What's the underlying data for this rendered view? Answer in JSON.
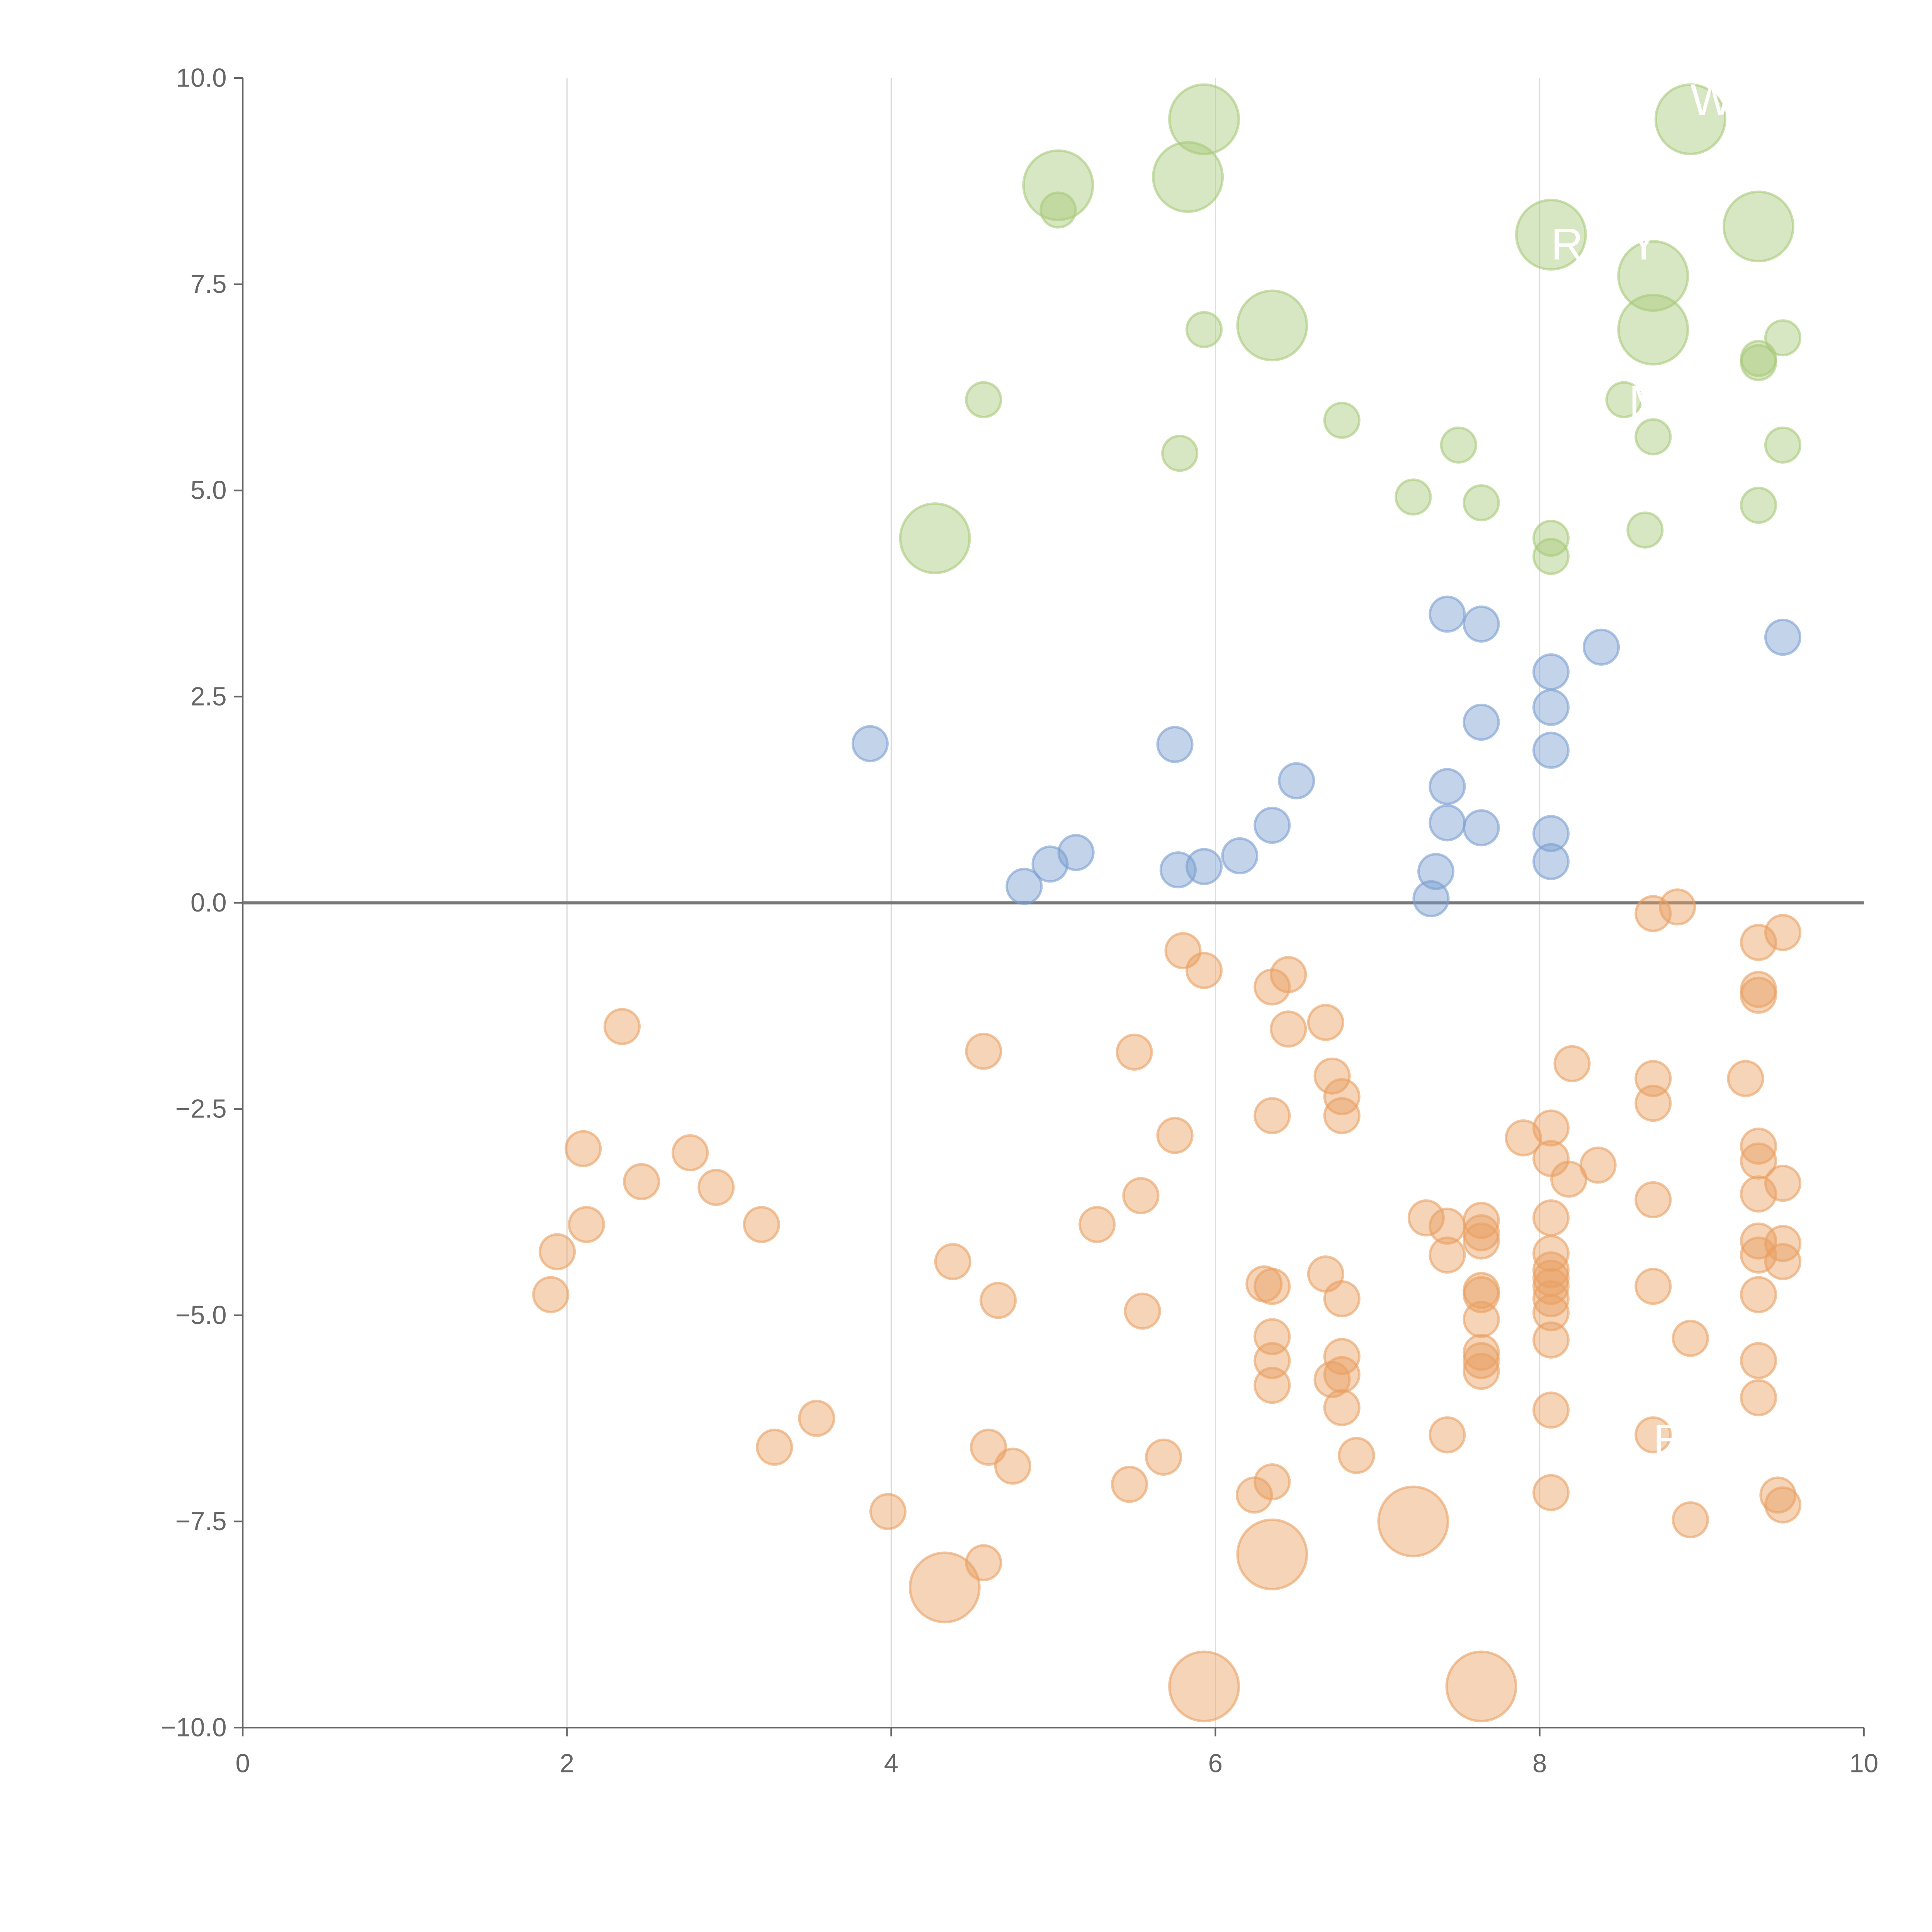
{
  "chart_data": {
    "type": "scatter",
    "title": "",
    "xlabel": "",
    "ylabel": "",
    "xlim": [
      0,
      10
    ],
    "ylim": [
      -10,
      10
    ],
    "x_ticks": [
      "0",
      "2",
      "4",
      "6",
      "8",
      "10"
    ],
    "y_ticks": [
      "10.0",
      "7.5",
      "5.0",
      "2.5",
      "0.0",
      "−2.5",
      "−5.0",
      "−7.5",
      "−10.0"
    ],
    "grid": "vertical",
    "reference_line_y": 0,
    "point_format": "[x, y, relative_size]",
    "series": [
      {
        "name": "green",
        "color": "#a9c97a",
        "points": [
          [
            5.93,
            9.5,
            2
          ],
          [
            5.03,
            8.7,
            2
          ],
          [
            5.03,
            8.4,
            1
          ],
          [
            5.83,
            8.8,
            2
          ],
          [
            8.07,
            8.1,
            2
          ],
          [
            8.93,
            9.5,
            2
          ],
          [
            9.35,
            8.2,
            2
          ],
          [
            8.7,
            7.6,
            2
          ],
          [
            8.7,
            6.95,
            2
          ],
          [
            6.35,
            7.0,
            2
          ],
          [
            5.93,
            6.95,
            1
          ],
          [
            4.57,
            6.1,
            1
          ],
          [
            5.78,
            5.45,
            1
          ],
          [
            6.78,
            5.85,
            1
          ],
          [
            7.5,
            5.55,
            1
          ],
          [
            7.22,
            4.92,
            1
          ],
          [
            7.64,
            4.85,
            1
          ],
          [
            8.07,
            4.42,
            1
          ],
          [
            8.07,
            4.2,
            1
          ],
          [
            8.52,
            6.1,
            1
          ],
          [
            8.7,
            5.65,
            1
          ],
          [
            8.65,
            4.52,
            1
          ],
          [
            9.35,
            6.6,
            1
          ],
          [
            9.35,
            6.55,
            1
          ],
          [
            9.5,
            6.85,
            1
          ],
          [
            9.5,
            5.55,
            1
          ],
          [
            9.35,
            4.82,
            1
          ],
          [
            4.27,
            4.42,
            2
          ]
        ]
      },
      {
        "name": "blue",
        "color": "#7b9fd1",
        "points": [
          [
            3.87,
            1.93,
            1
          ],
          [
            5.75,
            1.92,
            1
          ],
          [
            4.82,
            0.2,
            1
          ],
          [
            4.98,
            0.47,
            1
          ],
          [
            5.14,
            0.61,
            1
          ],
          [
            5.77,
            0.4,
            1
          ],
          [
            5.93,
            0.44,
            1
          ],
          [
            6.15,
            0.57,
            1
          ],
          [
            6.35,
            0.94,
            1
          ],
          [
            6.5,
            1.48,
            1
          ],
          [
            7.43,
            3.5,
            1
          ],
          [
            7.64,
            3.38,
            1
          ],
          [
            7.64,
            2.19,
            1
          ],
          [
            7.43,
            1.41,
            1
          ],
          [
            7.43,
            0.97,
            1
          ],
          [
            7.64,
            0.91,
            1
          ],
          [
            7.36,
            0.38,
            1
          ],
          [
            7.33,
            0.05,
            1
          ],
          [
            8.07,
            2.8,
            1
          ],
          [
            8.07,
            2.37,
            1
          ],
          [
            8.07,
            1.85,
            1
          ],
          [
            8.07,
            0.84,
            1
          ],
          [
            8.07,
            0.5,
            1
          ],
          [
            8.38,
            3.1,
            1
          ],
          [
            9.5,
            3.22,
            1
          ]
        ]
      },
      {
        "name": "orange",
        "color": "#e9a062",
        "points": [
          [
            2.34,
            -1.5,
            1
          ],
          [
            2.1,
            -2.98,
            1
          ],
          [
            2.12,
            -3.9,
            1
          ],
          [
            1.94,
            -4.23,
            1
          ],
          [
            1.9,
            -4.75,
            1
          ],
          [
            2.46,
            -3.38,
            1
          ],
          [
            2.76,
            -3.03,
            1
          ],
          [
            2.92,
            -3.45,
            1
          ],
          [
            3.2,
            -3.9,
            1
          ],
          [
            3.54,
            -6.25,
            1
          ],
          [
            3.28,
            -6.6,
            1
          ],
          [
            3.98,
            -7.38,
            1
          ],
          [
            4.33,
            -8.3,
            2
          ],
          [
            4.38,
            -4.35,
            1
          ],
          [
            4.57,
            -1.8,
            1
          ],
          [
            4.66,
            -4.82,
            1
          ],
          [
            4.6,
            -6.6,
            1
          ],
          [
            4.75,
            -6.83,
            1
          ],
          [
            4.57,
            -8.0,
            1
          ],
          [
            5.27,
            -3.9,
            1
          ],
          [
            5.5,
            -1.81,
            1
          ],
          [
            5.54,
            -3.55,
            1
          ],
          [
            5.55,
            -4.95,
            1
          ],
          [
            5.47,
            -7.05,
            1
          ],
          [
            5.68,
            -6.72,
            1
          ],
          [
            5.75,
            -2.82,
            1
          ],
          [
            5.8,
            -0.58,
            1
          ],
          [
            5.93,
            -0.82,
            1
          ],
          [
            5.93,
            -9.5,
            2
          ],
          [
            6.24,
            -7.18,
            1
          ],
          [
            6.35,
            -7.02,
            1
          ],
          [
            6.35,
            -7.9,
            2
          ],
          [
            6.35,
            -1.02,
            1
          ],
          [
            6.45,
            -0.87,
            1
          ],
          [
            6.45,
            -1.53,
            1
          ],
          [
            6.35,
            -2.58,
            1
          ],
          [
            6.3,
            -4.62,
            1
          ],
          [
            6.35,
            -4.65,
            1
          ],
          [
            6.35,
            -5.26,
            1
          ],
          [
            6.35,
            -5.55,
            1
          ],
          [
            6.35,
            -5.85,
            1
          ],
          [
            6.68,
            -1.45,
            1
          ],
          [
            6.72,
            -2.1,
            1
          ],
          [
            6.78,
            -2.35,
            1
          ],
          [
            6.78,
            -2.58,
            1
          ],
          [
            6.68,
            -4.5,
            1
          ],
          [
            6.78,
            -4.8,
            1
          ],
          [
            6.78,
            -5.5,
            1
          ],
          [
            6.72,
            -5.78,
            1
          ],
          [
            6.78,
            -5.72,
            1
          ],
          [
            6.78,
            -6.12,
            1
          ],
          [
            6.87,
            -6.7,
            1
          ],
          [
            7.22,
            -7.5,
            2
          ],
          [
            7.3,
            -3.82,
            1
          ],
          [
            7.43,
            -3.92,
            1
          ],
          [
            7.43,
            -4.27,
            1
          ],
          [
            7.43,
            -6.45,
            1
          ],
          [
            7.64,
            -3.85,
            1
          ],
          [
            7.64,
            -4.0,
            1
          ],
          [
            7.64,
            -4.1,
            1
          ],
          [
            7.64,
            -4.7,
            1
          ],
          [
            7.64,
            -4.75,
            1
          ],
          [
            7.64,
            -5.05,
            1
          ],
          [
            7.64,
            -5.45,
            1
          ],
          [
            7.64,
            -5.55,
            1
          ],
          [
            7.64,
            -5.68,
            1
          ],
          [
            7.64,
            -9.5,
            2
          ],
          [
            7.9,
            -2.85,
            1
          ],
          [
            8.07,
            -2.73,
            1
          ],
          [
            8.07,
            -3.1,
            1
          ],
          [
            8.18,
            -3.35,
            1
          ],
          [
            8.2,
            -1.95,
            1
          ],
          [
            8.07,
            -3.82,
            1
          ],
          [
            8.07,
            -4.25,
            1
          ],
          [
            8.07,
            -4.45,
            1
          ],
          [
            8.07,
            -4.55,
            1
          ],
          [
            8.07,
            -4.65,
            1
          ],
          [
            8.07,
            -4.8,
            1
          ],
          [
            8.07,
            -4.97,
            1
          ],
          [
            8.07,
            -5.3,
            1
          ],
          [
            8.07,
            -6.15,
            1
          ],
          [
            8.07,
            -7.15,
            1
          ],
          [
            8.36,
            -3.18,
            1
          ],
          [
            8.7,
            -0.13,
            1
          ],
          [
            8.85,
            -0.05,
            1
          ],
          [
            8.7,
            -2.13,
            1
          ],
          [
            8.7,
            -2.43,
            1
          ],
          [
            8.7,
            -3.6,
            1
          ],
          [
            8.7,
            -4.65,
            1
          ],
          [
            8.7,
            -6.45,
            1
          ],
          [
            8.93,
            -5.28,
            1
          ],
          [
            8.93,
            -7.48,
            1
          ],
          [
            9.27,
            -2.13,
            1
          ],
          [
            9.35,
            -0.48,
            1
          ],
          [
            9.35,
            -1.05,
            1
          ],
          [
            9.35,
            -1.12,
            1
          ],
          [
            9.35,
            -2.95,
            1
          ],
          [
            9.35,
            -3.13,
            1
          ],
          [
            9.35,
            -3.53,
            1
          ],
          [
            9.35,
            -4.1,
            1
          ],
          [
            9.35,
            -4.27,
            1
          ],
          [
            9.35,
            -4.75,
            1
          ],
          [
            9.35,
            -5.55,
            1
          ],
          [
            9.35,
            -6.0,
            1
          ],
          [
            9.5,
            -0.36,
            1
          ],
          [
            9.5,
            -3.4,
            1
          ],
          [
            9.5,
            -4.13,
            1
          ],
          [
            9.5,
            -4.35,
            1
          ],
          [
            9.47,
            -7.18,
            1
          ],
          [
            9.5,
            -7.3,
            1
          ]
        ]
      }
    ],
    "annotations": [
      {
        "text": "W",
        "x": 8.93,
        "y": 9.55
      },
      {
        "text": "R",
        "x": 8.07,
        "y": 7.8
      },
      {
        "text": "Y",
        "x": 8.55,
        "y": 7.8
      },
      {
        "text": "M",
        "x": 8.55,
        "y": 5.9
      },
      {
        "text": "E",
        "x": 8.7,
        "y": -6.7
      }
    ],
    "colors": {
      "axis": "#666666",
      "grid": "#dddddd",
      "zero_line": "#777777"
    }
  }
}
